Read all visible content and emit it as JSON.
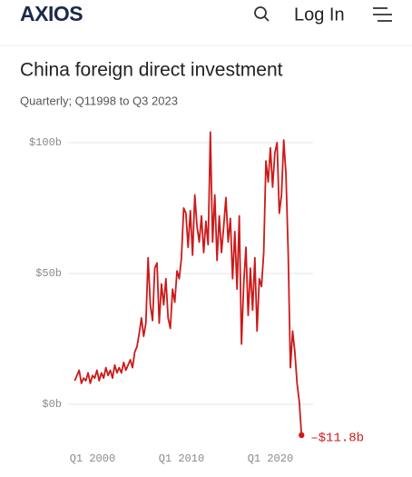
{
  "header": {
    "logo": "AXIOS",
    "login": "Log In"
  },
  "chart_data": {
    "type": "line",
    "title": "China foreign direct investment",
    "subtitle": "Quarterly; Q11998 to Q3 2023",
    "color": "#cc1a1a",
    "x": [
      1998,
      1998.25,
      1998.5,
      1998.75,
      1999,
      1999.25,
      1999.5,
      1999.75,
      2000,
      2000.25,
      2000.5,
      2000.75,
      2001,
      2001.25,
      2001.5,
      2001.75,
      2002,
      2002.25,
      2002.5,
      2002.75,
      2003,
      2003.25,
      2003.5,
      2003.75,
      2004,
      2004.25,
      2004.5,
      2004.75,
      2005,
      2005.25,
      2005.5,
      2005.75,
      2006,
      2006.25,
      2006.5,
      2006.75,
      2007,
      2007.25,
      2007.5,
      2007.75,
      2008,
      2008.25,
      2008.5,
      2008.75,
      2009,
      2009.25,
      2009.5,
      2009.75,
      2010,
      2010.25,
      2010.5,
      2010.75,
      2011,
      2011.25,
      2011.5,
      2011.75,
      2012,
      2012.25,
      2012.5,
      2012.75,
      2013,
      2013.25,
      2013.5,
      2013.75,
      2014,
      2014.25,
      2014.5,
      2014.75,
      2015,
      2015.25,
      2015.5,
      2015.75,
      2016,
      2016.25,
      2016.5,
      2016.75,
      2017,
      2017.25,
      2017.5,
      2017.75,
      2018,
      2018.25,
      2018.5,
      2018.75,
      2019,
      2019.25,
      2019.5,
      2019.75,
      2020,
      2020.25,
      2020.5,
      2020.75,
      2021,
      2021.25,
      2021.5,
      2021.75,
      2022,
      2022.25,
      2022.5,
      2022.75,
      2023,
      2023.25,
      2023.5
    ],
    "values": [
      9,
      11,
      13,
      8,
      10,
      9,
      12,
      8,
      11,
      10,
      13,
      9,
      12,
      10,
      14,
      11,
      13,
      10,
      15,
      12,
      14,
      12,
      16,
      13,
      15,
      17,
      14,
      20,
      22,
      27,
      33,
      26,
      31,
      56,
      38,
      32,
      52,
      54,
      31,
      46,
      38,
      48,
      33,
      29,
      44,
      39,
      51,
      48,
      56,
      75,
      73,
      60,
      74,
      57,
      80,
      68,
      62,
      72,
      58,
      70,
      61,
      104,
      62,
      80,
      55,
      72,
      58,
      68,
      79,
      62,
      71,
      48,
      66,
      44,
      72,
      23,
      46,
      60,
      34,
      52,
      36,
      56,
      28,
      48,
      45,
      58,
      93,
      85,
      98,
      83,
      96,
      100,
      73,
      80,
      101,
      88,
      58,
      14,
      28,
      20,
      8,
      1,
      -11.8
    ],
    "value_labels": [
      null,
      null,
      null,
      null,
      null,
      null,
      null,
      null,
      null,
      null,
      null,
      null,
      null,
      null,
      null,
      null,
      null,
      null,
      null,
      null,
      null,
      null,
      null,
      null,
      null,
      null,
      null,
      null,
      null,
      null,
      null,
      null,
      null,
      null,
      null,
      null,
      null,
      null,
      null,
      null,
      null,
      null,
      null,
      null,
      null,
      null,
      null,
      null,
      null,
      null,
      null,
      null,
      null,
      null,
      null,
      null,
      null,
      null,
      null,
      null,
      null,
      null,
      null,
      null,
      null,
      null,
      null,
      null,
      null,
      null,
      null,
      null,
      null,
      null,
      null,
      null,
      null,
      null,
      null,
      null,
      null,
      null,
      null,
      null,
      null,
      null,
      null,
      null,
      null,
      null,
      null,
      null,
      null,
      null,
      null,
      null,
      null,
      null,
      null,
      null,
      null,
      null,
      "–$11.8b"
    ],
    "xlim": [
      1997.25,
      2024.8
    ],
    "xticks": [
      {
        "value": 2000,
        "label": "Q1 2000"
      },
      {
        "value": 2010,
        "label": "Q1 2010"
      },
      {
        "value": 2020,
        "label": "Q1 2020"
      }
    ],
    "ylim": [
      -13,
      106
    ],
    "yticks": [
      {
        "value": 0,
        "label": "$0b"
      },
      {
        "value": 50,
        "label": "$50b"
      },
      {
        "value": 100,
        "label": "$100b"
      }
    ],
    "grid": true
  }
}
